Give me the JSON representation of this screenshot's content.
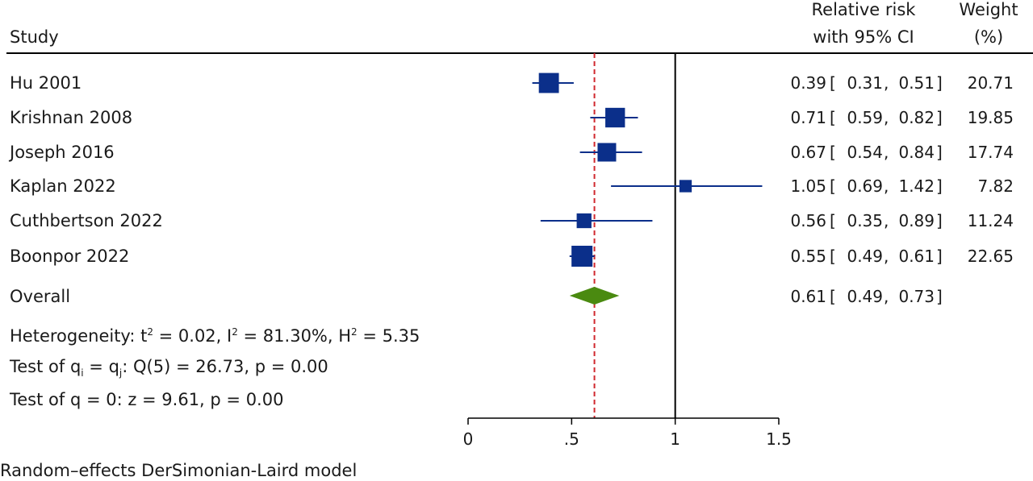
{
  "header": {
    "study_label": "Study",
    "effect_label_line1": "Relative risk",
    "effect_label_line2": "with 95% CI",
    "weight_label_line1": "Weight",
    "weight_label_line2": "(%)"
  },
  "chart_data": {
    "type": "forest",
    "xlim": [
      0,
      1.5
    ],
    "x_ticks": [
      0,
      0.5,
      1,
      1.5
    ],
    "x_tick_labels": [
      "0",
      ".5",
      "1",
      "1.5"
    ],
    "null_line": 1,
    "overall_line": 0.61,
    "colors": {
      "square": "#0b2f8a",
      "ci": "#0b2f8a",
      "diamond": "#4a8a10",
      "overall_line": "#d0282e",
      "axis": "#000000"
    },
    "studies": [
      {
        "name": "Hu 2001",
        "rr": 0.39,
        "lo": 0.31,
        "hi": 0.51,
        "weight": 20.71,
        "rr_text": "0.39",
        "lo_text": "0.31",
        "hi_text": "0.51",
        "weight_text": "20.71"
      },
      {
        "name": "Krishnan 2008",
        "rr": 0.71,
        "lo": 0.59,
        "hi": 0.82,
        "weight": 19.85,
        "rr_text": "0.71",
        "lo_text": "0.59",
        "hi_text": "0.82",
        "weight_text": "19.85"
      },
      {
        "name": "Joseph 2016",
        "rr": 0.67,
        "lo": 0.54,
        "hi": 0.84,
        "weight": 17.74,
        "rr_text": "0.67",
        "lo_text": "0.54",
        "hi_text": "0.84",
        "weight_text": "17.74"
      },
      {
        "name": "Kaplan 2022",
        "rr": 1.05,
        "lo": 0.69,
        "hi": 1.42,
        "weight": 7.82,
        "rr_text": "1.05",
        "lo_text": "0.69",
        "hi_text": "1.42",
        "weight_text": "7.82"
      },
      {
        "name": "Cuthbertson 2022",
        "rr": 0.56,
        "lo": 0.35,
        "hi": 0.89,
        "weight": 11.24,
        "rr_text": "0.56",
        "lo_text": "0.35",
        "hi_text": "0.89",
        "weight_text": "11.24"
      },
      {
        "name": "Boonpor 2022",
        "rr": 0.55,
        "lo": 0.49,
        "hi": 0.61,
        "weight": 22.65,
        "rr_text": "0.55",
        "lo_text": "0.49",
        "hi_text": "0.61",
        "weight_text": "22.65"
      }
    ],
    "overall": {
      "name": "Overall",
      "rr": 0.61,
      "lo": 0.49,
      "hi": 0.73,
      "rr_text": "0.61",
      "lo_text": "0.49",
      "hi_text": "0.73"
    },
    "stats": {
      "heterogeneity": {
        "prefix": "Heterogeneity: t",
        "t2": "2",
        "mid1": " = 0.02, I",
        "i2": "2",
        "mid2": " = 81.30%, H",
        "h2": "2",
        "tail": " = 5.35"
      },
      "test_q": {
        "prefix": "Test of q",
        "sub_i": "i",
        "mid": " = q",
        "sub_j": "j",
        "tail": ": Q(5) = 26.73, p = 0.00"
      },
      "test_zero": "Test of q = 0: z = 9.61, p = 0.00"
    },
    "footnote": "Random–effects DerSimonian-Laird model"
  }
}
